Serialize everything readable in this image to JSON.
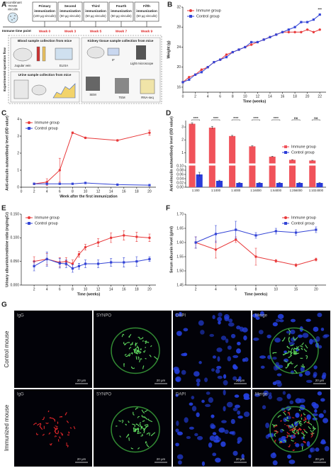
{
  "diagram": {
    "label": "A",
    "antigen": [
      "Recombinant",
      "mouse",
      "vinculin"
    ],
    "steps": [
      {
        "lines": [
          "Primary",
          "immunization",
          "(100 μg vinculin)"
        ],
        "week": "Week 0"
      },
      {
        "lines": [
          "Second",
          "immunization",
          "(50 μg vinculin)"
        ],
        "week": "Week 3"
      },
      {
        "lines": [
          "Third",
          "immunization",
          "(50 μg vinculin)"
        ],
        "week": "Week 5"
      },
      {
        "lines": [
          "Fourth",
          "immunization",
          "(50 μg vinculin)"
        ],
        "week": "Week 7"
      },
      {
        "lines": [
          "Fifth",
          "immunization",
          "(50 μg vinculin)"
        ],
        "week": "Week 9"
      }
    ],
    "timeline": "Immune time point",
    "flow": "Experimental operation flow",
    "blood": {
      "title": "Blood sample collection from mice",
      "items": [
        "Jugular vein",
        "ELISA"
      ]
    },
    "urine": {
      "title": "Urine sample collection from mice"
    },
    "kidney": {
      "title": "Kidney tissue sample collection from mice",
      "items": [
        "IF",
        "Light microscope",
        "SEM",
        "TEM",
        "RNA-seq"
      ]
    }
  },
  "chart_data": [
    {
      "type": "line",
      "label": "B",
      "xlabel": "Time (weeks)",
      "ylabel": "Weight (g)",
      "x": [
        0,
        1,
        2,
        3,
        4,
        5,
        6,
        7,
        8,
        9,
        10,
        11,
        12,
        13,
        14,
        15,
        16,
        17,
        18,
        19,
        20,
        21,
        22
      ],
      "xlim": [
        0,
        23
      ],
      "xticks": [
        0,
        2,
        4,
        6,
        8,
        10,
        12,
        14,
        16,
        18,
        20,
        22
      ],
      "ylim": [
        15,
        32
      ],
      "yticks": [
        16,
        20,
        24,
        28,
        32
      ],
      "legend": "upper left",
      "series": [
        {
          "name": "Immune group",
          "color": "#e8393a",
          "marker": "circle",
          "values": [
            17,
            18,
            18.5,
            19.5,
            20,
            21,
            21.5,
            22.5,
            23,
            23.5,
            24,
            24.5,
            25,
            25.5,
            26,
            26.5,
            27,
            27,
            27,
            27,
            27.5,
            27,
            27.5
          ]
        },
        {
          "name": "Control group",
          "color": "#3344d6",
          "marker": "square",
          "values": [
            17,
            17.5,
            18.5,
            19,
            20,
            21,
            21.5,
            22,
            23,
            23.5,
            24,
            25,
            25,
            25.5,
            26,
            26.5,
            27,
            27.5,
            28,
            29,
            29,
            29.5,
            30.5
          ]
        }
      ],
      "annotations": [
        {
          "text": "***",
          "x": 22,
          "y": 31.5
        }
      ]
    },
    {
      "type": "line",
      "label": "C",
      "xlabel": "Week after the first immunization",
      "ylabel": "Anti-vinculin autoantibody level (OD value)",
      "x": [
        2,
        4,
        6,
        8,
        10,
        15,
        20
      ],
      "xlim": [
        0,
        21
      ],
      "xticks": [
        0,
        2,
        4,
        6,
        8,
        10,
        12,
        14,
        16,
        18,
        20
      ],
      "ylim": [
        0,
        4
      ],
      "yticks": [
        0,
        1,
        2,
        3,
        4
      ],
      "legend": "upper left",
      "series": [
        {
          "name": "Immune group",
          "color": "#e8393a",
          "marker": "circle",
          "values": [
            0.2,
            0.3,
            1.0,
            3.2,
            2.9,
            2.75,
            3.2
          ],
          "errors": [
            0.05,
            0.2,
            0.7,
            0.05,
            0.05,
            0.05,
            0.15
          ]
        },
        {
          "name": "Control group",
          "color": "#3344d6",
          "marker": "square",
          "values": [
            0.2,
            0.2,
            0.2,
            0.2,
            0.25,
            0.15,
            0.12
          ],
          "errors": [
            0.02,
            0.02,
            0.02,
            0.02,
            0.02,
            0.02,
            0.02
          ]
        }
      ]
    },
    {
      "type": "broken-bar",
      "label": "D",
      "ylabel": "Anti-vinculin autoantibody level (OD value)",
      "categories": [
        "1:200",
        "1:1000",
        "1:4000",
        "1:16000",
        "1:64000",
        "1:256000",
        "1:1024000"
      ],
      "ylim_lower": [
        0,
        0.1
      ],
      "yticks_lower": [
        {
          "value": 0,
          "label": "0.00"
        },
        0.02,
        0.04,
        0.06,
        0.08,
        {
          "value": 0.1,
          "label": "0.10"
        }
      ],
      "ylim_upper": [
        0.2,
        3.5
      ],
      "yticks_upper": [
        1,
        2,
        3
      ],
      "legend": "right",
      "significance": [
        "****",
        "****",
        "****",
        "****",
        "****",
        "ns",
        "ns"
      ],
      "series": [
        {
          "name": "Immune group",
          "color": "#f0525a",
          "values": [
            3.25,
            2.95,
            2.3,
            1.5,
            0.7,
            0.45,
            0.4
          ],
          "errors": [
            0.08,
            0.1,
            0.05,
            0.05,
            0.03,
            0.02,
            0.02
          ]
        },
        {
          "name": "Control group",
          "color": "#2a3bd8",
          "values": [
            0.06,
            0.03,
            0.02,
            0.02,
            0.02,
            0.02,
            0.02
          ],
          "errors": [
            0.01,
            0.003,
            0.002,
            0.002,
            0.002,
            0.002,
            0.002
          ]
        }
      ]
    },
    {
      "type": "line",
      "label": "E",
      "xlabel": "Time (weeks)",
      "ylabel": "Urinary albumin/creatinine ratio (mg/mgCr)",
      "x": [
        2,
        4,
        6,
        7,
        8,
        9,
        10,
        12,
        14,
        16,
        18,
        20
      ],
      "xlim": [
        0,
        21
      ],
      "xticks": [
        2,
        4,
        6,
        8,
        10,
        12,
        14,
        16,
        18,
        20
      ],
      "ylim": [
        0,
        0.15
      ],
      "yticks": [
        {
          "value": 0,
          "label": "0.000"
        },
        {
          "value": 0.05,
          "label": "0.050"
        },
        {
          "value": 0.1,
          "label": "0.100"
        },
        {
          "value": 0.15,
          "label": "0.150"
        }
      ],
      "legend": "upper left",
      "series": [
        {
          "name": "Immune group",
          "color": "#e8393a",
          "marker": "circle",
          "values": [
            0.05,
            0.055,
            0.048,
            0.05,
            0.045,
            0.065,
            0.08,
            0.09,
            0.1,
            0.105,
            0.102,
            0.1
          ],
          "errors": [
            0.01,
            0.012,
            0.01,
            0.008,
            0.008,
            0.006,
            0.006,
            0.008,
            0.01,
            0.01,
            0.01,
            0.008
          ]
        },
        {
          "name": "Control group",
          "color": "#3344d6",
          "marker": "square",
          "values": [
            0.04,
            0.055,
            0.046,
            0.045,
            0.035,
            0.04,
            0.045,
            0.045,
            0.048,
            0.048,
            0.05,
            0.055
          ],
          "errors": [
            0.01,
            0.015,
            0.01,
            0.008,
            0.008,
            0.006,
            0.008,
            0.008,
            0.008,
            0.01,
            0.01,
            0.005
          ]
        }
      ]
    },
    {
      "type": "line",
      "label": "F",
      "xlabel": "Time (weeks)",
      "ylabel": "Serum albumin level (g/ml)",
      "categories": [
        "2",
        "4",
        "6",
        "8",
        "10",
        "15",
        "20"
      ],
      "ylim": [
        1.45,
        1.7
      ],
      "yticks": [
        {
          "value": 1.45,
          "label": "1.45"
        },
        {
          "value": 1.5,
          "label": "1.50"
        },
        {
          "value": 1.55,
          "label": "1.55"
        },
        {
          "value": 1.6,
          "label": "1.60"
        },
        {
          "value": 1.65,
          "label": "1.65"
        },
        {
          "value": 1.7,
          "label": "1.70"
        }
      ],
      "legend": "upper right",
      "series": [
        {
          "name": "Immune group",
          "color": "#e8393a",
          "marker": "circle",
          "values": [
            1.6,
            1.575,
            1.61,
            1.55,
            1.535,
            1.52,
            1.54
          ],
          "errors": [
            0.02,
            0.03,
            0.01,
            0.03,
            0.005,
            0.005,
            0.005
          ]
        },
        {
          "name": "Control group",
          "color": "#3344d6",
          "marker": "square",
          "values": [
            1.6,
            1.63,
            1.645,
            1.625,
            1.64,
            1.635,
            1.645
          ],
          "errors": [
            0.02,
            0.03,
            0.03,
            0.01,
            0.01,
            0.01,
            0.01
          ]
        }
      ]
    }
  ],
  "images": {
    "label": "G",
    "columns": [
      "IgG",
      "SYNPO",
      "DAPI",
      "Merge"
    ],
    "rows": [
      "Control mouse",
      "Immunized mouse"
    ],
    "scale_bar": "20 μm"
  }
}
